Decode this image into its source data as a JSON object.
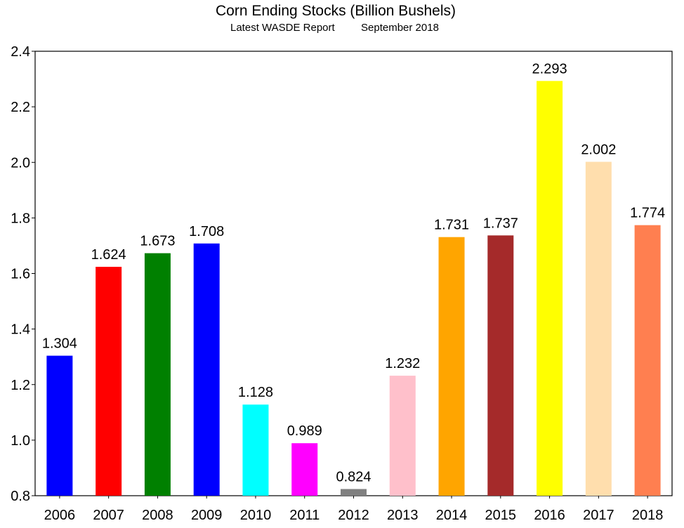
{
  "chart_data": {
    "type": "bar",
    "title": "Corn Ending Stocks (Billion Bushels)",
    "subtitle_left": "Latest WASDE Report",
    "subtitle_right": "September 2018",
    "xlabel": "",
    "ylabel": "",
    "ylim": [
      0.8,
      2.4
    ],
    "yticks": [
      "0.8",
      "1.0",
      "1.2",
      "1.4",
      "1.6",
      "1.8",
      "2.0",
      "2.2",
      "2.4"
    ],
    "grid": false,
    "categories": [
      "2006",
      "2007",
      "2008",
      "2009",
      "2010",
      "2011",
      "2012",
      "2013",
      "2014",
      "2015",
      "2016",
      "2017",
      "2018"
    ],
    "values": [
      1.304,
      1.624,
      1.673,
      1.708,
      1.128,
      0.989,
      0.824,
      1.232,
      1.731,
      1.737,
      2.293,
      2.002,
      1.774
    ],
    "value_labels": [
      "1.304",
      "1.624",
      "1.673",
      "1.708",
      "1.128",
      "0.989",
      "0.824",
      "1.232",
      "1.731",
      "1.737",
      "2.293",
      "2.002",
      "1.774"
    ],
    "colors": [
      "#0000ff",
      "#ff0000",
      "#008000",
      "#0000ff",
      "#00ffff",
      "#ff00ff",
      "#808080",
      "#ffc0cb",
      "#ffa500",
      "#a52a2a",
      "#ffff00",
      "#ffdead",
      "#ff7f50"
    ]
  }
}
